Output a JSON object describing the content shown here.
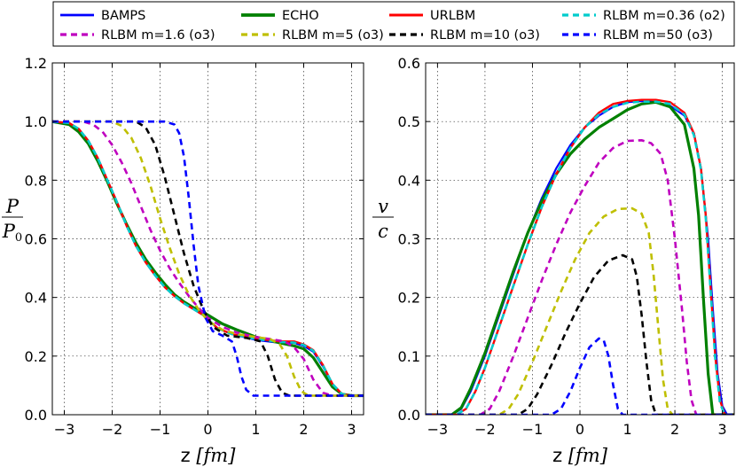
{
  "chart_data": [
    {
      "type": "line",
      "panel": "left",
      "xlabel_main": "z",
      "xlabel_unit": "[fm]",
      "ylabel_num": "P",
      "ylabel_den": "P",
      "ylabel_den_sub": "0",
      "xlim": [
        -3.25,
        3.25
      ],
      "ylim": [
        0.0,
        1.2
      ],
      "xticks": [
        -3,
        -2,
        -1,
        0,
        1,
        2,
        3
      ],
      "xtick_labels": [
        "−3",
        "−2",
        "−1",
        "0",
        "1",
        "2",
        "3"
      ],
      "yticks": [
        0.0,
        0.2,
        0.4,
        0.6,
        0.8,
        1.0,
        1.2
      ],
      "ytick_labels": [
        "0.0",
        "0.2",
        "0.4",
        "0.6",
        "0.8",
        "1.0",
        "1.2"
      ],
      "grid": true,
      "series": [
        {
          "name": "BAMPS",
          "color": "#0000ff",
          "style": "solid",
          "width": 2.2,
          "x": [
            -3.25,
            -2.9,
            -2.7,
            -2.5,
            -2.3,
            -2.1,
            -1.9,
            -1.7,
            -1.5,
            -1.3,
            -1.1,
            -0.9,
            -0.7,
            -0.5,
            -0.3,
            -0.1,
            0.0,
            0.2,
            0.5,
            1.0,
            1.5,
            1.8,
            2.0,
            2.2,
            2.4,
            2.6,
            2.8,
            3.0,
            3.25
          ],
          "y": [
            1.0,
            0.995,
            0.975,
            0.935,
            0.875,
            0.8,
            0.725,
            0.645,
            0.575,
            0.52,
            0.475,
            0.435,
            0.405,
            0.38,
            0.36,
            0.34,
            0.325,
            0.295,
            0.275,
            0.255,
            0.245,
            0.245,
            0.235,
            0.215,
            0.165,
            0.105,
            0.07,
            0.065,
            0.065
          ]
        },
        {
          "name": "ECHO",
          "color": "#008000",
          "style": "solid",
          "width": 3.2,
          "x": [
            -3.25,
            -2.9,
            -2.7,
            -2.5,
            -2.3,
            -2.1,
            -1.9,
            -1.7,
            -1.5,
            -1.3,
            -1.1,
            -0.9,
            -0.7,
            -0.5,
            -0.3,
            -0.1,
            0.0,
            0.3,
            0.6,
            1.0,
            1.5,
            1.8,
            2.0,
            2.2,
            2.4,
            2.6,
            2.8,
            3.0,
            3.25
          ],
          "y": [
            1.0,
            0.99,
            0.965,
            0.925,
            0.865,
            0.795,
            0.72,
            0.65,
            0.585,
            0.53,
            0.485,
            0.445,
            0.41,
            0.385,
            0.365,
            0.35,
            0.34,
            0.31,
            0.29,
            0.265,
            0.245,
            0.235,
            0.225,
            0.195,
            0.145,
            0.095,
            0.07,
            0.065,
            0.065
          ]
        },
        {
          "name": "URLBM",
          "color": "#ff0000",
          "style": "solid",
          "width": 2.4,
          "x": [
            -3.25,
            -2.9,
            -2.7,
            -2.5,
            -2.3,
            -2.1,
            -1.9,
            -1.7,
            -1.5,
            -1.3,
            -1.1,
            -0.9,
            -0.7,
            -0.5,
            -0.3,
            -0.1,
            0.0,
            0.2,
            0.5,
            1.0,
            1.5,
            1.8,
            2.0,
            2.2,
            2.4,
            2.6,
            2.8,
            3.0,
            3.25
          ],
          "y": [
            1.0,
            0.995,
            0.975,
            0.935,
            0.875,
            0.8,
            0.725,
            0.645,
            0.575,
            0.52,
            0.475,
            0.435,
            0.405,
            0.38,
            0.36,
            0.34,
            0.325,
            0.295,
            0.275,
            0.26,
            0.25,
            0.25,
            0.24,
            0.22,
            0.17,
            0.105,
            0.07,
            0.065,
            0.065
          ]
        },
        {
          "name": "RLBM m=0.36 (o2)",
          "color": "#00cccc",
          "style": "dashed",
          "width": 2.6,
          "x": [
            -3.25,
            -2.9,
            -2.7,
            -2.5,
            -2.3,
            -2.1,
            -1.9,
            -1.7,
            -1.5,
            -1.3,
            -1.1,
            -0.9,
            -0.7,
            -0.5,
            -0.3,
            -0.1,
            0.0,
            0.2,
            0.5,
            1.0,
            1.5,
            1.8,
            2.0,
            2.2,
            2.4,
            2.6,
            2.8,
            3.0,
            3.25
          ],
          "y": [
            1.0,
            0.995,
            0.975,
            0.935,
            0.875,
            0.8,
            0.725,
            0.645,
            0.575,
            0.52,
            0.475,
            0.435,
            0.405,
            0.38,
            0.36,
            0.34,
            0.325,
            0.295,
            0.275,
            0.258,
            0.248,
            0.246,
            0.238,
            0.218,
            0.168,
            0.105,
            0.07,
            0.065,
            0.065
          ]
        },
        {
          "name": "RLBM m=1.6 (o3)",
          "color": "#bf00bf",
          "style": "dashed",
          "width": 2.6,
          "x": [
            -3.25,
            -2.6,
            -2.4,
            -2.2,
            -2.0,
            -1.8,
            -1.6,
            -1.4,
            -1.2,
            -1.0,
            -0.8,
            -0.6,
            -0.4,
            -0.2,
            0.0,
            0.3,
            0.6,
            1.0,
            1.3,
            1.6,
            1.8,
            2.0,
            2.2,
            2.4,
            2.6,
            3.25
          ],
          "y": [
            1.0,
            1.0,
            0.99,
            0.965,
            0.92,
            0.86,
            0.79,
            0.71,
            0.63,
            0.56,
            0.5,
            0.45,
            0.405,
            0.365,
            0.33,
            0.3,
            0.28,
            0.265,
            0.258,
            0.25,
            0.23,
            0.19,
            0.12,
            0.075,
            0.065,
            0.065
          ]
        },
        {
          "name": "RLBM m=5 (o3)",
          "color": "#bfbf00",
          "style": "dashed",
          "width": 2.6,
          "x": [
            -3.25,
            -2.0,
            -1.8,
            -1.6,
            -1.4,
            -1.2,
            -1.0,
            -0.8,
            -0.6,
            -0.4,
            -0.2,
            0.0,
            0.3,
            0.6,
            1.0,
            1.3,
            1.5,
            1.65,
            1.8,
            1.95,
            2.1,
            3.25
          ],
          "y": [
            1.0,
            1.0,
            0.985,
            0.945,
            0.875,
            0.78,
            0.67,
            0.57,
            0.48,
            0.41,
            0.36,
            0.32,
            0.29,
            0.275,
            0.265,
            0.258,
            0.24,
            0.2,
            0.13,
            0.08,
            0.065,
            0.065
          ]
        },
        {
          "name": "RLBM m=10 (o3)",
          "color": "#000000",
          "style": "dashed",
          "width": 2.6,
          "x": [
            -3.25,
            -1.5,
            -1.3,
            -1.1,
            -0.9,
            -0.7,
            -0.5,
            -0.3,
            -0.1,
            0.1,
            0.4,
            0.8,
            1.1,
            1.25,
            1.4,
            1.55,
            1.7,
            3.25
          ],
          "y": [
            1.0,
            1.0,
            0.98,
            0.92,
            0.81,
            0.68,
            0.55,
            0.44,
            0.36,
            0.3,
            0.27,
            0.262,
            0.25,
            0.2,
            0.12,
            0.075,
            0.065,
            0.065
          ]
        },
        {
          "name": "RLBM m=50 (o3)",
          "color": "#0000ff",
          "style": "dashed",
          "width": 2.6,
          "x": [
            -3.25,
            -0.9,
            -0.7,
            -0.6,
            -0.5,
            -0.4,
            -0.3,
            -0.2,
            -0.05,
            0.1,
            0.3,
            0.5,
            0.6,
            0.7,
            0.8,
            0.95,
            3.25
          ],
          "y": [
            1.0,
            1.0,
            0.99,
            0.96,
            0.88,
            0.74,
            0.58,
            0.44,
            0.33,
            0.285,
            0.27,
            0.25,
            0.2,
            0.13,
            0.085,
            0.065,
            0.065
          ]
        }
      ]
    },
    {
      "type": "line",
      "panel": "right",
      "xlabel_main": "z",
      "xlabel_unit": "[fm]",
      "ylabel_num": "v",
      "ylabel_den": "c",
      "xlim": [
        -3.25,
        3.25
      ],
      "ylim": [
        0.0,
        0.6
      ],
      "xticks": [
        -3,
        -2,
        -1,
        0,
        1,
        2,
        3
      ],
      "xtick_labels": [
        "−3",
        "−2",
        "−1",
        "0",
        "1",
        "2",
        "3"
      ],
      "yticks": [
        0.0,
        0.1,
        0.2,
        0.3,
        0.4,
        0.5,
        0.6
      ],
      "ytick_labels": [
        "0.0",
        "0.1",
        "0.2",
        "0.3",
        "0.4",
        "0.5",
        "0.6"
      ],
      "grid": true,
      "series": [
        {
          "name": "BAMPS",
          "color": "#0000ff",
          "style": "solid",
          "width": 2.2,
          "x": [
            -3.25,
            -2.7,
            -2.5,
            -2.3,
            -2.0,
            -1.7,
            -1.4,
            -1.1,
            -0.8,
            -0.5,
            -0.2,
            0.1,
            0.4,
            0.7,
            1.0,
            1.3,
            1.6,
            1.9,
            2.2,
            2.4,
            2.55,
            2.7,
            2.8,
            2.9,
            3.0,
            3.1,
            3.25
          ],
          "y": [
            0.0,
            0.0,
            0.01,
            0.04,
            0.1,
            0.17,
            0.24,
            0.31,
            0.37,
            0.42,
            0.46,
            0.49,
            0.51,
            0.525,
            0.533,
            0.535,
            0.533,
            0.527,
            0.51,
            0.48,
            0.42,
            0.3,
            0.18,
            0.07,
            0.015,
            0.0,
            0.0
          ]
        },
        {
          "name": "ECHO",
          "color": "#008000",
          "style": "solid",
          "width": 3.2,
          "x": [
            -3.25,
            -2.7,
            -2.5,
            -2.3,
            -2.0,
            -1.7,
            -1.4,
            -1.1,
            -0.8,
            -0.5,
            -0.2,
            0.1,
            0.4,
            0.7,
            1.0,
            1.3,
            1.6,
            1.9,
            2.2,
            2.4,
            2.5,
            2.6,
            2.7,
            2.8,
            3.25
          ],
          "y": [
            0.0,
            0.0,
            0.012,
            0.045,
            0.105,
            0.175,
            0.245,
            0.31,
            0.365,
            0.41,
            0.445,
            0.47,
            0.49,
            0.505,
            0.52,
            0.53,
            0.533,
            0.525,
            0.495,
            0.42,
            0.34,
            0.2,
            0.07,
            0.0,
            0.0
          ]
        },
        {
          "name": "URLBM",
          "color": "#ff0000",
          "style": "solid",
          "width": 2.4,
          "x": [
            -3.25,
            -2.6,
            -2.4,
            -2.2,
            -2.0,
            -1.7,
            -1.4,
            -1.1,
            -0.8,
            -0.5,
            -0.2,
            0.1,
            0.4,
            0.7,
            1.0,
            1.3,
            1.6,
            1.9,
            2.2,
            2.4,
            2.55,
            2.65,
            2.75,
            2.85,
            2.95,
            3.05,
            3.25
          ],
          "y": [
            0.0,
            0.0,
            0.01,
            0.04,
            0.08,
            0.15,
            0.22,
            0.29,
            0.355,
            0.41,
            0.455,
            0.49,
            0.515,
            0.53,
            0.535,
            0.537,
            0.537,
            0.533,
            0.515,
            0.48,
            0.42,
            0.34,
            0.22,
            0.1,
            0.025,
            0.0,
            0.0
          ]
        },
        {
          "name": "RLBM m=0.36 (o2)",
          "color": "#00cccc",
          "style": "dashed",
          "width": 2.6,
          "x": [
            -3.25,
            -2.6,
            -2.4,
            -2.2,
            -2.0,
            -1.7,
            -1.4,
            -1.1,
            -0.8,
            -0.5,
            -0.2,
            0.1,
            0.4,
            0.7,
            1.0,
            1.3,
            1.6,
            1.9,
            2.2,
            2.4,
            2.55,
            2.65,
            2.75,
            2.85,
            2.95,
            3.05,
            3.25
          ],
          "y": [
            0.0,
            0.0,
            0.01,
            0.04,
            0.08,
            0.15,
            0.22,
            0.29,
            0.355,
            0.41,
            0.455,
            0.49,
            0.512,
            0.525,
            0.532,
            0.534,
            0.534,
            0.53,
            0.512,
            0.477,
            0.418,
            0.335,
            0.215,
            0.095,
            0.02,
            0.0,
            0.0
          ]
        },
        {
          "name": "RLBM m=1.6 (o3)",
          "color": "#bf00bf",
          "style": "dashed",
          "width": 2.6,
          "x": [
            -3.25,
            -2.1,
            -1.9,
            -1.7,
            -1.4,
            -1.1,
            -0.8,
            -0.5,
            -0.2,
            0.1,
            0.4,
            0.7,
            1.0,
            1.3,
            1.5,
            1.7,
            1.85,
            2.0,
            2.15,
            2.25,
            2.35,
            2.45,
            3.25
          ],
          "y": [
            0.0,
            0.0,
            0.01,
            0.04,
            0.1,
            0.165,
            0.23,
            0.29,
            0.345,
            0.39,
            0.43,
            0.455,
            0.467,
            0.468,
            0.463,
            0.445,
            0.4,
            0.3,
            0.18,
            0.09,
            0.025,
            0.0,
            0.0
          ]
        },
        {
          "name": "RLBM m=5 (o3)",
          "color": "#bfbf00",
          "style": "dashed",
          "width": 2.6,
          "x": [
            -3.25,
            -1.7,
            -1.5,
            -1.3,
            -1.0,
            -0.7,
            -0.4,
            -0.1,
            0.2,
            0.5,
            0.8,
            1.1,
            1.3,
            1.45,
            1.55,
            1.65,
            1.75,
            1.85,
            1.95,
            3.25
          ],
          "y": [
            0.0,
            0.0,
            0.01,
            0.035,
            0.09,
            0.15,
            0.21,
            0.265,
            0.31,
            0.338,
            0.351,
            0.352,
            0.343,
            0.31,
            0.24,
            0.15,
            0.06,
            0.01,
            0.0,
            0.0
          ]
        },
        {
          "name": "RLBM m=10 (o3)",
          "color": "#000000",
          "style": "dashed",
          "width": 2.6,
          "x": [
            -3.25,
            -1.3,
            -1.1,
            -0.9,
            -0.6,
            -0.3,
            0.0,
            0.3,
            0.6,
            0.9,
            1.1,
            1.2,
            1.3,
            1.4,
            1.5,
            1.6,
            3.25
          ],
          "y": [
            0.0,
            0.0,
            0.01,
            0.035,
            0.085,
            0.14,
            0.19,
            0.235,
            0.263,
            0.272,
            0.265,
            0.235,
            0.17,
            0.09,
            0.025,
            0.0,
            0.0
          ]
        },
        {
          "name": "RLBM m=50 (o3)",
          "color": "#0000ff",
          "style": "dashed",
          "width": 2.6,
          "x": [
            -3.25,
            -0.6,
            -0.4,
            -0.2,
            0.0,
            0.2,
            0.4,
            0.5,
            0.6,
            0.7,
            0.8,
            0.9,
            3.25
          ],
          "y": [
            0.0,
            0.0,
            0.01,
            0.04,
            0.08,
            0.115,
            0.13,
            0.127,
            0.1,
            0.05,
            0.01,
            0.0,
            0.0
          ]
        }
      ]
    }
  ]
}
